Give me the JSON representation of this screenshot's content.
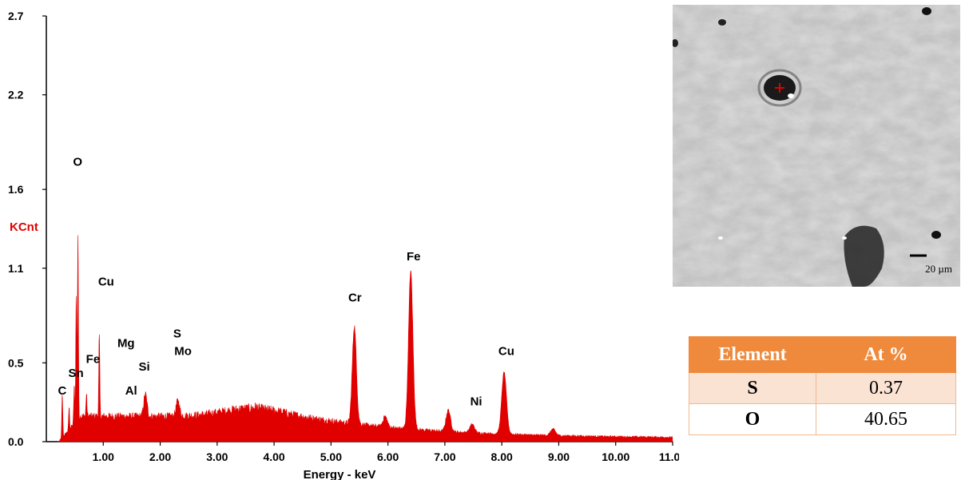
{
  "chart_data": {
    "type": "line",
    "xlabel": "Energy - keV",
    "ylabel": "KCnt",
    "xlim": [
      0,
      11
    ],
    "ylim": [
      0,
      2.7
    ],
    "x_ticks": [
      "1.00",
      "2.00",
      "3.00",
      "4.00",
      "5.00",
      "6.00",
      "7.00",
      "8.00",
      "9.00",
      "10.00",
      "11.00"
    ],
    "y_ticks": [
      "0.0",
      "0.5",
      "1.1",
      "1.6",
      "2.2",
      "2.7"
    ],
    "color": "#e00000",
    "peaks": [
      {
        "x": 0.28,
        "y": 0.3
      },
      {
        "x": 0.4,
        "y": 0.22
      },
      {
        "x": 0.49,
        "y": 0.36
      },
      {
        "x": 0.525,
        "y": 0.92
      },
      {
        "x": 0.555,
        "y": 1.32
      },
      {
        "x": 0.705,
        "y": 0.3
      },
      {
        "x": 0.93,
        "y": 0.68
      },
      {
        "x": 1.25,
        "y": 0.16
      },
      {
        "x": 1.49,
        "y": 0.14
      },
      {
        "x": 1.74,
        "y": 0.3
      },
      {
        "x": 2.31,
        "y": 0.26
      },
      {
        "x": 3.68,
        "y": 0.22
      },
      {
        "x": 4.1,
        "y": 0.18
      },
      {
        "x": 5.41,
        "y": 0.73
      },
      {
        "x": 5.95,
        "y": 0.16
      },
      {
        "x": 6.4,
        "y": 1.08
      },
      {
        "x": 7.06,
        "y": 0.2
      },
      {
        "x": 7.48,
        "y": 0.11
      },
      {
        "x": 8.04,
        "y": 0.44
      },
      {
        "x": 8.9,
        "y": 0.08
      }
    ],
    "annotations": [
      {
        "text": "O",
        "x": 0.55,
        "y": 1.75
      },
      {
        "text": "Cu",
        "x": 1.05,
        "y": 0.99
      },
      {
        "text": "Mg",
        "x": 1.4,
        "y": 0.6
      },
      {
        "text": "S",
        "x": 2.3,
        "y": 0.66
      },
      {
        "text": "Mo",
        "x": 2.4,
        "y": 0.55
      },
      {
        "text": "Fe",
        "x": 0.82,
        "y": 0.5
      },
      {
        "text": "Sn",
        "x": 0.52,
        "y": 0.41
      },
      {
        "text": "Si",
        "x": 1.72,
        "y": 0.45
      },
      {
        "text": "C",
        "x": 0.28,
        "y": 0.3
      },
      {
        "text": "Al",
        "x": 1.49,
        "y": 0.3
      },
      {
        "text": "Cr",
        "x": 5.42,
        "y": 0.89
      },
      {
        "text": "Fe",
        "x": 6.45,
        "y": 1.15
      },
      {
        "text": "Ni",
        "x": 7.55,
        "y": 0.23
      },
      {
        "text": "Cu",
        "x": 8.08,
        "y": 0.55
      }
    ]
  },
  "sem_image": {
    "scale_bar_label": "20 µm"
  },
  "composition_table": {
    "headers": [
      "Element",
      "At %"
    ],
    "rows": [
      {
        "element": "S",
        "value": "0.37"
      },
      {
        "element": "O",
        "value": "40.65"
      }
    ],
    "header_color": "#ef8a3c"
  }
}
